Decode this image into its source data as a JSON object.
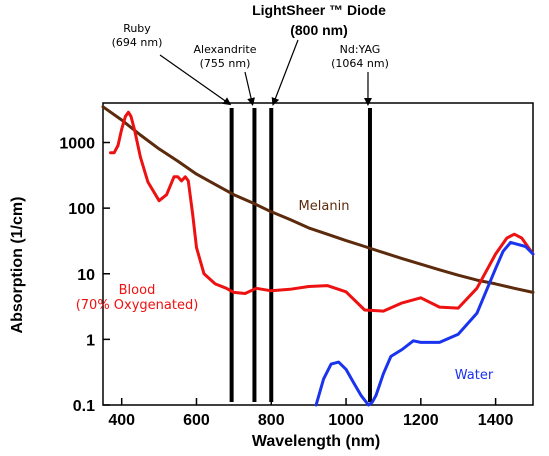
{
  "chart_data": {
    "type": "line",
    "xlabel": "Wavelength (nm)",
    "ylabel": "Absorption (1/cm)",
    "xlim": [
      350,
      1500
    ],
    "ylim": [
      0.1,
      4000
    ],
    "y_scale": "log",
    "x_ticks": [
      400,
      600,
      800,
      1000,
      1200,
      1400
    ],
    "y_ticks": [
      {
        "value": 0.1,
        "label": "0.1"
      },
      {
        "value": 1,
        "label": "1"
      },
      {
        "value": 10,
        "label": "10"
      },
      {
        "value": 100,
        "label": "100"
      },
      {
        "value": 1000,
        "label": "1000"
      }
    ],
    "grid": false,
    "series": [
      {
        "name": "Melanin",
        "color": "#5c2a0c",
        "x": [
          350,
          400,
          450,
          500,
          550,
          600,
          650,
          700,
          750,
          800,
          850,
          900,
          950,
          1000,
          1050,
          1100,
          1150,
          1200,
          1250,
          1300,
          1350,
          1400,
          1450,
          1500
        ],
        "y": [
          3500,
          2200,
          1300,
          800,
          520,
          330,
          230,
          160,
          120,
          88,
          67,
          50,
          40,
          32,
          26,
          21,
          17,
          14,
          11.5,
          9.5,
          8,
          7,
          6,
          5.2
        ]
      },
      {
        "name": "Blood (70% Oxygenated)",
        "label_lines": [
          "Blood",
          "(70% Oxygenated)"
        ],
        "color": "#ee1111",
        "x": [
          370,
          380,
          390,
          400,
          410,
          418,
          425,
          435,
          450,
          470,
          500,
          520,
          540,
          550,
          560,
          570,
          578,
          590,
          600,
          620,
          650,
          680,
          700,
          730,
          760,
          800,
          850,
          900,
          950,
          1000,
          1050,
          1100,
          1150,
          1200,
          1250,
          1300,
          1350,
          1400,
          1430,
          1450,
          1470,
          1500
        ],
        "y": [
          700,
          700,
          900,
          1600,
          2500,
          2900,
          2500,
          1500,
          600,
          250,
          130,
          160,
          300,
          300,
          260,
          300,
          260,
          80,
          25,
          10,
          7,
          6,
          5.2,
          5,
          6,
          5.5,
          5.8,
          6.4,
          6.6,
          5.3,
          2.8,
          2.7,
          3.6,
          4.3,
          3.1,
          3,
          6,
          20,
          35,
          40,
          35,
          20
        ]
      },
      {
        "name": "Water",
        "color": "#1a33ee",
        "x": [
          920,
          940,
          960,
          980,
          1000,
          1020,
          1040,
          1060,
          1070,
          1080,
          1100,
          1120,
          1150,
          1180,
          1200,
          1250,
          1300,
          1350,
          1400,
          1420,
          1440,
          1460,
          1480,
          1500
        ],
        "y": [
          0.1,
          0.25,
          0.42,
          0.45,
          0.35,
          0.22,
          0.14,
          0.1,
          0.11,
          0.14,
          0.3,
          0.55,
          0.7,
          0.95,
          0.9,
          0.9,
          1.2,
          2.5,
          12,
          22,
          30,
          28,
          26,
          20
        ]
      }
    ],
    "lasers": [
      {
        "name": "Ruby",
        "wavelength_label": "(694 nm)",
        "x": 694
      },
      {
        "name": "Alexandrite",
        "wavelength_label": "(755 nm)",
        "x": 755
      },
      {
        "name": "LightSheer ™ Diode",
        "wavelength_label": "(800 nm)",
        "x": 800
      },
      {
        "name": "Nd:YAG",
        "wavelength_label": "(1064 nm)",
        "x": 1064
      }
    ]
  }
}
